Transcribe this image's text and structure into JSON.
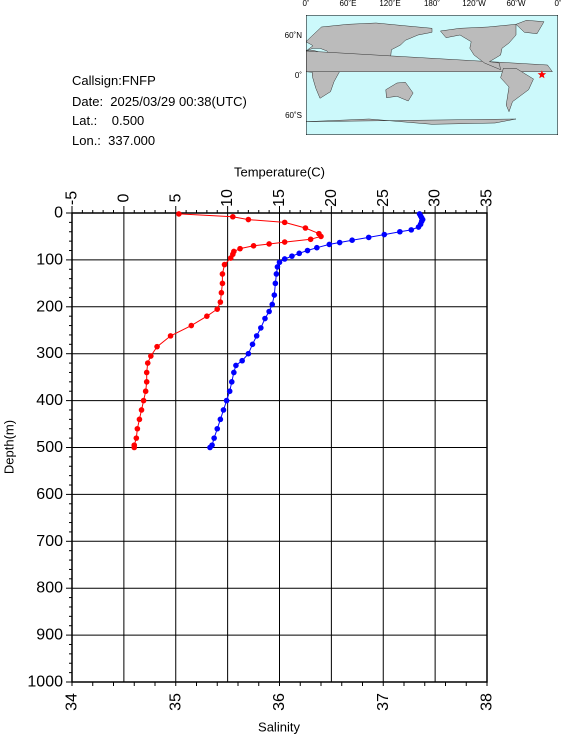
{
  "station": {
    "callsign_line": "Callsign:FNFP",
    "date_line": "Date:  2025/03/29 00:38(UTC)",
    "lat_line": "Lat.:    0.500",
    "lon_line": "Lon.:  337.000"
  },
  "map": {
    "top_ticks": [
      "0˚",
      "60˚E",
      "120˚E",
      "180˚",
      "120˚W",
      "60˚W",
      "0˚"
    ],
    "side_ticks": [
      "60˚N",
      "0˚",
      "60˚S"
    ],
    "ocean_color": "#ccf9fb",
    "land_color": "#bbbbbb",
    "marker_color": "#ff0000",
    "marker": {
      "lon": 337.0,
      "lat": 0.5
    }
  },
  "chart_data": {
    "type": "line",
    "top_axis_label": "Temperature(C)",
    "bottom_axis_label": "Salinity",
    "y_axis_label": "Depth(m)",
    "temperature_range": [
      -5,
      35
    ],
    "temperature_ticks": [
      "-5",
      "0",
      "5",
      "10",
      "15",
      "20",
      "25",
      "30",
      "35"
    ],
    "salinity_range": [
      34,
      38
    ],
    "salinity_ticks": [
      "34",
      "35",
      "36",
      "37",
      "38"
    ],
    "depth_range": [
      0,
      1000
    ],
    "depth_ticks": [
      "0",
      "100",
      "200",
      "300",
      "400",
      "500",
      "600",
      "700",
      "800",
      "900",
      "1000"
    ],
    "grid": true,
    "series": [
      {
        "quantity": "temperature",
        "axis": "top",
        "color": "#0000ff",
        "points": [
          [
            28.5,
            2
          ],
          [
            28.6,
            6
          ],
          [
            28.7,
            10
          ],
          [
            28.8,
            14
          ],
          [
            28.7,
            18
          ],
          [
            28.6,
            24
          ],
          [
            28.4,
            30
          ],
          [
            27.7,
            36
          ],
          [
            26.6,
            40
          ],
          [
            25.1,
            46
          ],
          [
            23.6,
            52
          ],
          [
            22.0,
            58
          ],
          [
            20.8,
            63
          ],
          [
            19.8,
            67
          ],
          [
            18.6,
            74
          ],
          [
            17.7,
            80
          ],
          [
            16.9,
            86
          ],
          [
            16.2,
            92
          ],
          [
            15.5,
            98
          ],
          [
            15.0,
            105
          ],
          [
            14.8,
            115
          ],
          [
            14.7,
            130
          ],
          [
            14.6,
            150
          ],
          [
            14.5,
            175
          ],
          [
            14.3,
            195
          ],
          [
            14.0,
            210
          ],
          [
            13.6,
            225
          ],
          [
            13.2,
            245
          ],
          [
            12.8,
            262
          ],
          [
            12.4,
            280
          ],
          [
            12.0,
            300
          ],
          [
            11.4,
            315
          ],
          [
            10.8,
            325
          ],
          [
            10.6,
            340
          ],
          [
            10.4,
            360
          ],
          [
            10.2,
            380
          ],
          [
            9.9,
            400
          ],
          [
            9.6,
            420
          ],
          [
            9.3,
            440
          ],
          [
            9.0,
            460
          ],
          [
            8.7,
            480
          ],
          [
            8.5,
            495
          ],
          [
            8.3,
            500
          ]
        ]
      },
      {
        "quantity": "salinity",
        "axis": "bottom",
        "color": "#ff0000",
        "points": [
          [
            35.03,
            2
          ],
          [
            35.55,
            8
          ],
          [
            35.7,
            14
          ],
          [
            36.05,
            20
          ],
          [
            36.25,
            32
          ],
          [
            36.38,
            44
          ],
          [
            36.4,
            50
          ],
          [
            36.3,
            56
          ],
          [
            36.05,
            62
          ],
          [
            35.9,
            66
          ],
          [
            35.75,
            70
          ],
          [
            35.62,
            76
          ],
          [
            35.56,
            82
          ],
          [
            35.55,
            88
          ],
          [
            35.53,
            96
          ],
          [
            35.47,
            110
          ],
          [
            35.45,
            130
          ],
          [
            35.45,
            150
          ],
          [
            35.44,
            170
          ],
          [
            35.43,
            190
          ],
          [
            35.4,
            205
          ],
          [
            35.3,
            220
          ],
          [
            35.15,
            240
          ],
          [
            34.95,
            262
          ],
          [
            34.82,
            285
          ],
          [
            34.76,
            305
          ],
          [
            34.73,
            320
          ],
          [
            34.72,
            340
          ],
          [
            34.72,
            360
          ],
          [
            34.71,
            380
          ],
          [
            34.69,
            400
          ],
          [
            34.67,
            420
          ],
          [
            34.65,
            440
          ],
          [
            34.63,
            460
          ],
          [
            34.62,
            480
          ],
          [
            34.6,
            495
          ],
          [
            34.6,
            500
          ]
        ]
      }
    ]
  }
}
